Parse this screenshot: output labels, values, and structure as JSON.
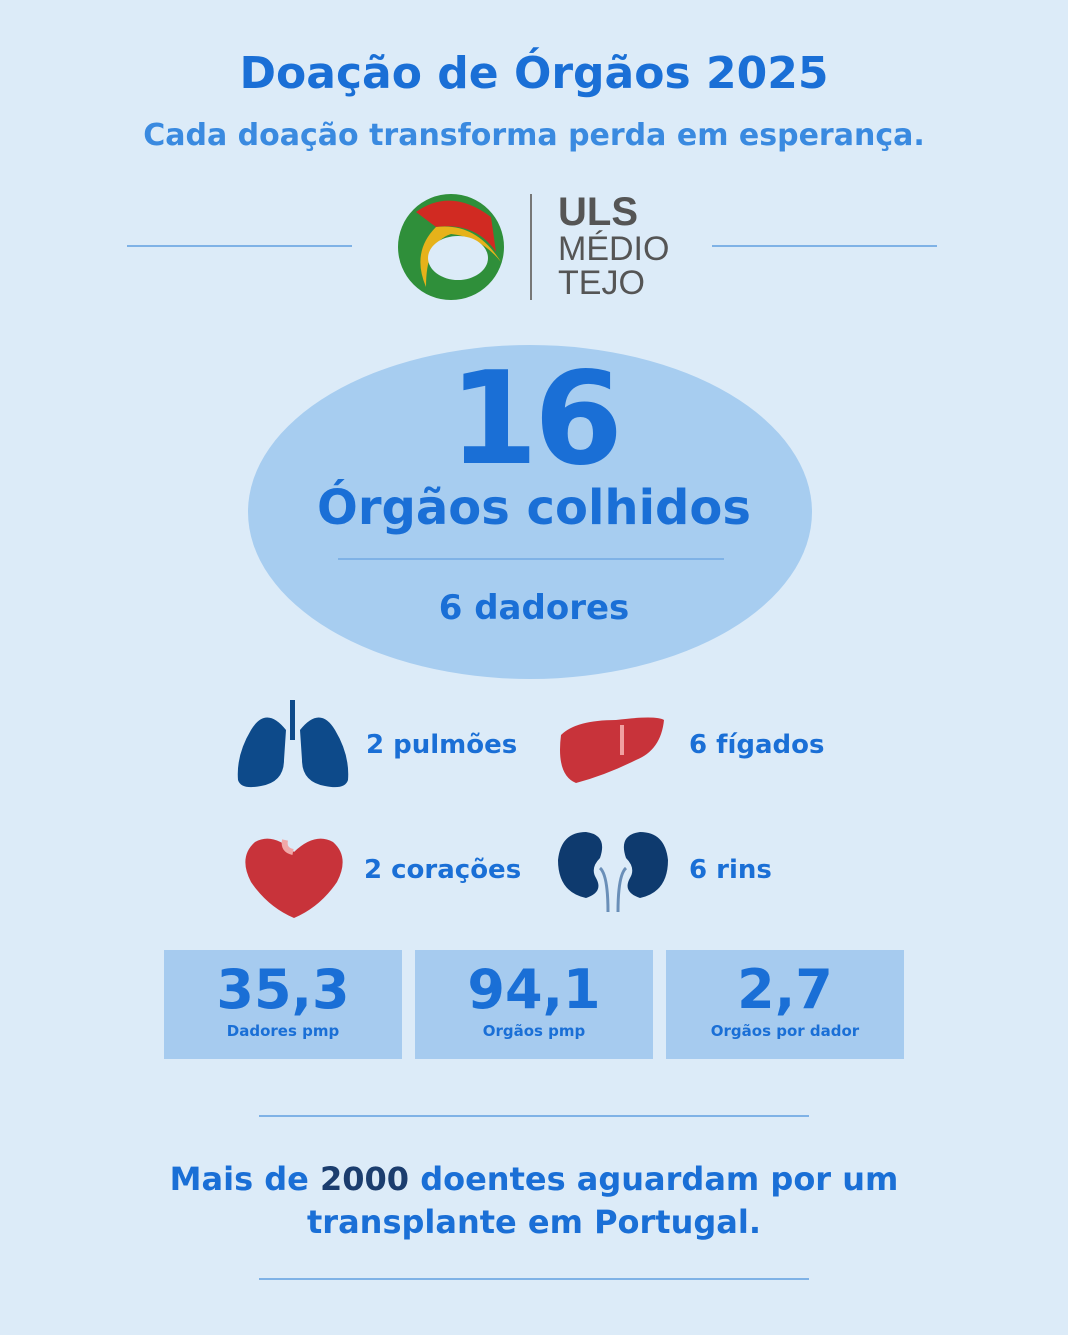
{
  "header": {
    "title": "Doação de Órgãos 2025",
    "subtitle": "Cada doação transforma perda em esperança."
  },
  "logo": {
    "line1": "ULS",
    "line2": "MÉDIO",
    "line3": "TEJO"
  },
  "hero": {
    "count": "16",
    "label": "Órgãos colhidos",
    "donors": "6 dadores"
  },
  "organs": [
    {
      "icon": "lungs-icon",
      "label": "2 pulmões",
      "color": "#0d4a8a"
    },
    {
      "icon": "liver-icon",
      "label": "6 fígados",
      "color": "#c8333a"
    },
    {
      "icon": "heart-icon",
      "label": "2 corações",
      "color": "#c8333a"
    },
    {
      "icon": "kidneys-icon",
      "label": "6 rins",
      "color": "#0e3a6e"
    }
  ],
  "stats": [
    {
      "value": "35,3",
      "label": "Dadores pmp"
    },
    {
      "value": "94,1",
      "label": "Orgãos pmp"
    },
    {
      "value": "2,7",
      "label": "Orgãos por dador"
    }
  ],
  "footer": {
    "before": "Mais de ",
    "highlight": "2000",
    "after": " doentes aguardam por um",
    "line2": "transplante em Portugal."
  },
  "colors": {
    "background": "#dcebf8",
    "accent": "#1a6fd6",
    "ellipse": "#a7cdf0"
  }
}
